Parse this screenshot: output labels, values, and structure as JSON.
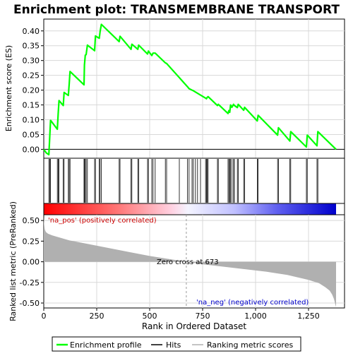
{
  "chart_data": {
    "type": "line",
    "title": "Enrichment plot: TRANSMEMBRANE TRANSPORT",
    "top_panel": {
      "ylabel": "Enrichment score (ES)",
      "ylim": [
        -0.03,
        0.44
      ],
      "yticks": [
        "0.00",
        "0.05",
        "0.10",
        "0.15",
        "0.20",
        "0.25",
        "0.30",
        "0.35",
        "0.40"
      ],
      "grid": true,
      "series": [
        {
          "name": "Enrichment profile",
          "color": "#00ff00",
          "x": [
            0,
            12,
            24,
            28,
            32,
            64,
            68,
            72,
            92,
            96,
            116,
            120,
            124,
            190,
            192,
            196,
            200,
            206,
            240,
            244,
            262,
            266,
            272,
            356,
            360,
            412,
            416,
            444,
            448,
            490,
            494,
            510,
            516,
            526,
            574,
            580,
            678,
            686,
            700,
            706,
            764,
            768,
            772,
            776,
            820,
            824,
            870,
            874,
            878,
            882,
            888,
            896,
            900,
            914,
            918,
            944,
            948,
            1008,
            1012,
            1104,
            1108,
            1162,
            1166,
            1240,
            1244,
            1290,
            1294,
            1380
          ],
          "y": [
            0.0,
            -0.012,
            -0.018,
            0.04,
            0.098,
            0.068,
            0.12,
            0.165,
            0.148,
            0.192,
            0.182,
            0.22,
            0.263,
            0.218,
            0.285,
            0.318,
            0.32,
            0.352,
            0.333,
            0.383,
            0.375,
            0.398,
            0.422,
            0.364,
            0.382,
            0.338,
            0.355,
            0.338,
            0.352,
            0.322,
            0.332,
            0.317,
            0.325,
            0.325,
            0.292,
            0.29,
            0.212,
            0.205,
            0.2,
            0.198,
            0.173,
            0.171,
            0.176,
            0.178,
            0.148,
            0.152,
            0.121,
            0.131,
            0.125,
            0.15,
            0.142,
            0.152,
            0.148,
            0.141,
            0.152,
            0.132,
            0.142,
            0.096,
            0.115,
            0.048,
            0.073,
            0.028,
            0.06,
            0.008,
            0.048,
            0.012,
            0.06,
            0.0
          ]
        }
      ]
    },
    "hits": {
      "name": "Hits",
      "positions": [
        24,
        28,
        32,
        64,
        68,
        72,
        92,
        96,
        116,
        120,
        124,
        190,
        192,
        196,
        200,
        206,
        240,
        244,
        262,
        266,
        272,
        356,
        360,
        412,
        416,
        444,
        448,
        490,
        494,
        510,
        516,
        526,
        574,
        580,
        640,
        678,
        686,
        700,
        706,
        716,
        726,
        740,
        764,
        768,
        772,
        776,
        820,
        824,
        870,
        874,
        878,
        882,
        888,
        896,
        900,
        914,
        918,
        944,
        948,
        1008,
        1012,
        1104,
        1108,
        1162,
        1166,
        1240,
        1244,
        1290,
        1294
      ]
    },
    "color_bar": {
      "stops": [
        {
          "rank": 0,
          "color": "#ff0000"
        },
        {
          "rank": 350,
          "color": "#ff7777"
        },
        {
          "rank": 600,
          "color": "#ffd0e0"
        },
        {
          "rank": 680,
          "color": "#f4f4ff"
        },
        {
          "rank": 900,
          "color": "#c0c0ff"
        },
        {
          "rank": 1100,
          "color": "#6060f0"
        },
        {
          "rank": 1380,
          "color": "#0000cc"
        }
      ]
    },
    "bottom_panel": {
      "ylabel": "Ranked list metric (PreRanked)",
      "xlabel": "Rank in Ordered Dataset",
      "ylim": [
        -0.56,
        0.57
      ],
      "yticks": [
        "0.50",
        "0.25",
        "0.00",
        "-0.25",
        "-0.50"
      ],
      "xlim": [
        0,
        1420
      ],
      "xticks": [
        "0",
        "250",
        "500",
        "750",
        "1,000",
        "1,250"
      ],
      "metric_series": {
        "name": "Ranking metric scores",
        "color": "#b0b0b0",
        "x": [
          0,
          2,
          5,
          10,
          20,
          40,
          80,
          120,
          200,
          300,
          400,
          500,
          600,
          673,
          750,
          850,
          950,
          1050,
          1150,
          1250,
          1300,
          1330,
          1350,
          1362,
          1370,
          1375,
          1380
        ],
        "y": [
          0.55,
          0.45,
          0.39,
          0.36,
          0.34,
          0.32,
          0.29,
          0.26,
          0.22,
          0.17,
          0.12,
          0.07,
          0.03,
          0.0,
          -0.03,
          -0.06,
          -0.09,
          -0.12,
          -0.16,
          -0.22,
          -0.26,
          -0.31,
          -0.35,
          -0.4,
          -0.45,
          -0.5,
          -0.55
        ]
      },
      "annotations": {
        "pos_label": "'na_pos' (positively correlated)",
        "neg_label": "'na_neg' (negatively correlated)",
        "zero_cross": "Zero cross at 673"
      },
      "zero_cross_rank": 673
    },
    "legend": {
      "placement": "bottom",
      "entries": [
        {
          "label": "Enrichment profile",
          "color": "#00ff00"
        },
        {
          "label": "Hits",
          "color": "#000000"
        },
        {
          "label": "Ranking metric scores",
          "color": "#b0b0b0"
        }
      ]
    }
  }
}
